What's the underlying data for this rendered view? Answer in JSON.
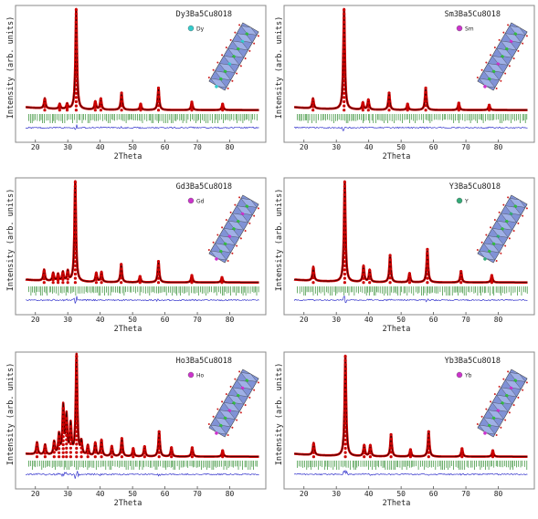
{
  "chart_data": [
    {
      "type": "line",
      "title": "Dy3Ba5Cu8O18",
      "xlabel": "2Theta",
      "ylabel": "Intensity (arb. units)",
      "xlim": [
        15,
        90
      ],
      "xticks": [
        20,
        30,
        40,
        50,
        60,
        70,
        80
      ],
      "legend": {
        "label": "Dy",
        "color": "#33cccc",
        "position": "top-right"
      },
      "series": [
        {
          "role": "observed",
          "color": "#cc0000",
          "peaks": [
            [
              22.9,
              0.1
            ],
            [
              27.5,
              0.05
            ],
            [
              29.8,
              0.05
            ],
            [
              32.6,
              1.0
            ],
            [
              38.5,
              0.08
            ],
            [
              40.2,
              0.11
            ],
            [
              46.6,
              0.17
            ],
            [
              52.5,
              0.06
            ],
            [
              58.0,
              0.22
            ],
            [
              68.3,
              0.08
            ],
            [
              77.8,
              0.06
            ]
          ]
        },
        {
          "role": "calculated",
          "color": "#000000"
        },
        {
          "role": "bragg-positions",
          "color": "#2e8b2e"
        },
        {
          "role": "difference",
          "color": "#3333cc"
        }
      ]
    },
    {
      "type": "line",
      "title": "Sm3Ba5Cu8O18",
      "xlabel": "2Theta",
      "ylabel": "Intensity (arb. units)",
      "xlim": [
        15,
        90
      ],
      "xticks": [
        20,
        30,
        40,
        50,
        60,
        70,
        80
      ],
      "legend": {
        "label": "Sm",
        "color": "#cc33cc",
        "position": "top-right"
      },
      "series": [
        {
          "role": "observed",
          "color": "#cc0000",
          "peaks": [
            [
              22.8,
              0.1
            ],
            [
              32.4,
              1.0
            ],
            [
              38.2,
              0.07
            ],
            [
              39.9,
              0.1
            ],
            [
              46.3,
              0.17
            ],
            [
              52.0,
              0.06
            ],
            [
              57.6,
              0.22
            ],
            [
              67.8,
              0.07
            ],
            [
              77.2,
              0.05
            ]
          ]
        },
        {
          "role": "calculated",
          "color": "#000000"
        },
        {
          "role": "bragg-positions",
          "color": "#2e8b2e"
        },
        {
          "role": "difference",
          "color": "#3333cc"
        }
      ]
    },
    {
      "type": "line",
      "title": "Gd3Ba5Cu8O18",
      "xlabel": "2Theta",
      "ylabel": "Intensity (arb. units)",
      "xlim": [
        15,
        90
      ],
      "xticks": [
        20,
        30,
        40,
        50,
        60,
        70,
        80
      ],
      "legend": {
        "label": "Gd",
        "color": "#cc33cc",
        "position": "top-right"
      },
      "series": [
        {
          "role": "observed",
          "color": "#cc0000",
          "peaks": [
            [
              22.7,
              0.11
            ],
            [
              25.5,
              0.08
            ],
            [
              27.0,
              0.07
            ],
            [
              28.5,
              0.09
            ],
            [
              30.0,
              0.1
            ],
            [
              32.3,
              1.0
            ],
            [
              38.8,
              0.09
            ],
            [
              40.4,
              0.1
            ],
            [
              46.5,
              0.18
            ],
            [
              52.3,
              0.06
            ],
            [
              58.0,
              0.21
            ],
            [
              68.3,
              0.07
            ],
            [
              77.6,
              0.05
            ]
          ]
        },
        {
          "role": "calculated",
          "color": "#000000"
        },
        {
          "role": "bragg-positions",
          "color": "#2e8b2e"
        },
        {
          "role": "difference",
          "color": "#3333cc"
        }
      ]
    },
    {
      "type": "line",
      "title": "Y3Ba5Cu8O18",
      "xlabel": "2Theta",
      "ylabel": "Intensity (arb. units)",
      "xlim": [
        15,
        90
      ],
      "xticks": [
        20,
        30,
        40,
        50,
        60,
        70,
        80
      ],
      "legend": {
        "label": "Y",
        "color": "#33aa77",
        "position": "top-right"
      },
      "series": [
        {
          "role": "observed",
          "color": "#cc0000",
          "peaks": [
            [
              22.9,
              0.14
            ],
            [
              32.6,
              1.0
            ],
            [
              38.4,
              0.16
            ],
            [
              40.3,
              0.12
            ],
            [
              46.6,
              0.27
            ],
            [
              52.6,
              0.09
            ],
            [
              58.1,
              0.33
            ],
            [
              68.5,
              0.11
            ],
            [
              78.0,
              0.07
            ]
          ]
        },
        {
          "role": "calculated",
          "color": "#000000"
        },
        {
          "role": "bragg-positions",
          "color": "#2e8b2e"
        },
        {
          "role": "difference",
          "color": "#3333cc"
        }
      ]
    },
    {
      "type": "line",
      "title": "Ho3Ba5Cu8O18",
      "xlabel": "2Theta",
      "ylabel": "Intensity (arb. units)",
      "xlim": [
        15,
        90
      ],
      "xticks": [
        20,
        30,
        40,
        50,
        60,
        70,
        80
      ],
      "legend": {
        "label": "Ho",
        "color": "#cc33cc",
        "position": "top-right"
      },
      "series": [
        {
          "role": "observed",
          "color": "#cc0000",
          "peaks": [
            [
              20.5,
              0.12
            ],
            [
              23.0,
              0.1
            ],
            [
              25.8,
              0.13
            ],
            [
              27.3,
              0.2
            ],
            [
              28.6,
              0.48
            ],
            [
              29.6,
              0.38
            ],
            [
              30.9,
              0.3
            ],
            [
              32.7,
              1.0
            ],
            [
              34.2,
              0.13
            ],
            [
              36.2,
              0.1
            ],
            [
              38.5,
              0.13
            ],
            [
              40.4,
              0.16
            ],
            [
              43.6,
              0.1
            ],
            [
              46.7,
              0.18
            ],
            [
              50.2,
              0.08
            ],
            [
              53.7,
              0.1
            ],
            [
              58.2,
              0.25
            ],
            [
              62.0,
              0.09
            ],
            [
              68.4,
              0.09
            ],
            [
              77.8,
              0.06
            ]
          ]
        },
        {
          "role": "calculated",
          "color": "#000000"
        },
        {
          "role": "bragg-positions",
          "color": "#2e8b2e"
        },
        {
          "role": "difference",
          "color": "#3333cc"
        }
      ]
    },
    {
      "type": "line",
      "title": "Yb3Ba5Cu8O18",
      "xlabel": "2Theta",
      "ylabel": "Intensity (arb. units)",
      "xlim": [
        15,
        90
      ],
      "xticks": [
        20,
        30,
        40,
        50,
        60,
        70,
        80
      ],
      "legend": {
        "label": "Yb",
        "color": "#cc33cc",
        "position": "top-right"
      },
      "series": [
        {
          "role": "observed",
          "color": "#cc0000",
          "peaks": [
            [
              23.0,
              0.12
            ],
            [
              32.8,
              1.0
            ],
            [
              38.6,
              0.11
            ],
            [
              40.5,
              0.11
            ],
            [
              46.9,
              0.22
            ],
            [
              52.9,
              0.07
            ],
            [
              58.5,
              0.25
            ],
            [
              68.8,
              0.08
            ],
            [
              78.3,
              0.06
            ]
          ]
        },
        {
          "role": "calculated",
          "color": "#000000"
        },
        {
          "role": "bragg-positions",
          "color": "#2e8b2e"
        },
        {
          "role": "difference",
          "color": "#3333cc"
        }
      ]
    }
  ]
}
